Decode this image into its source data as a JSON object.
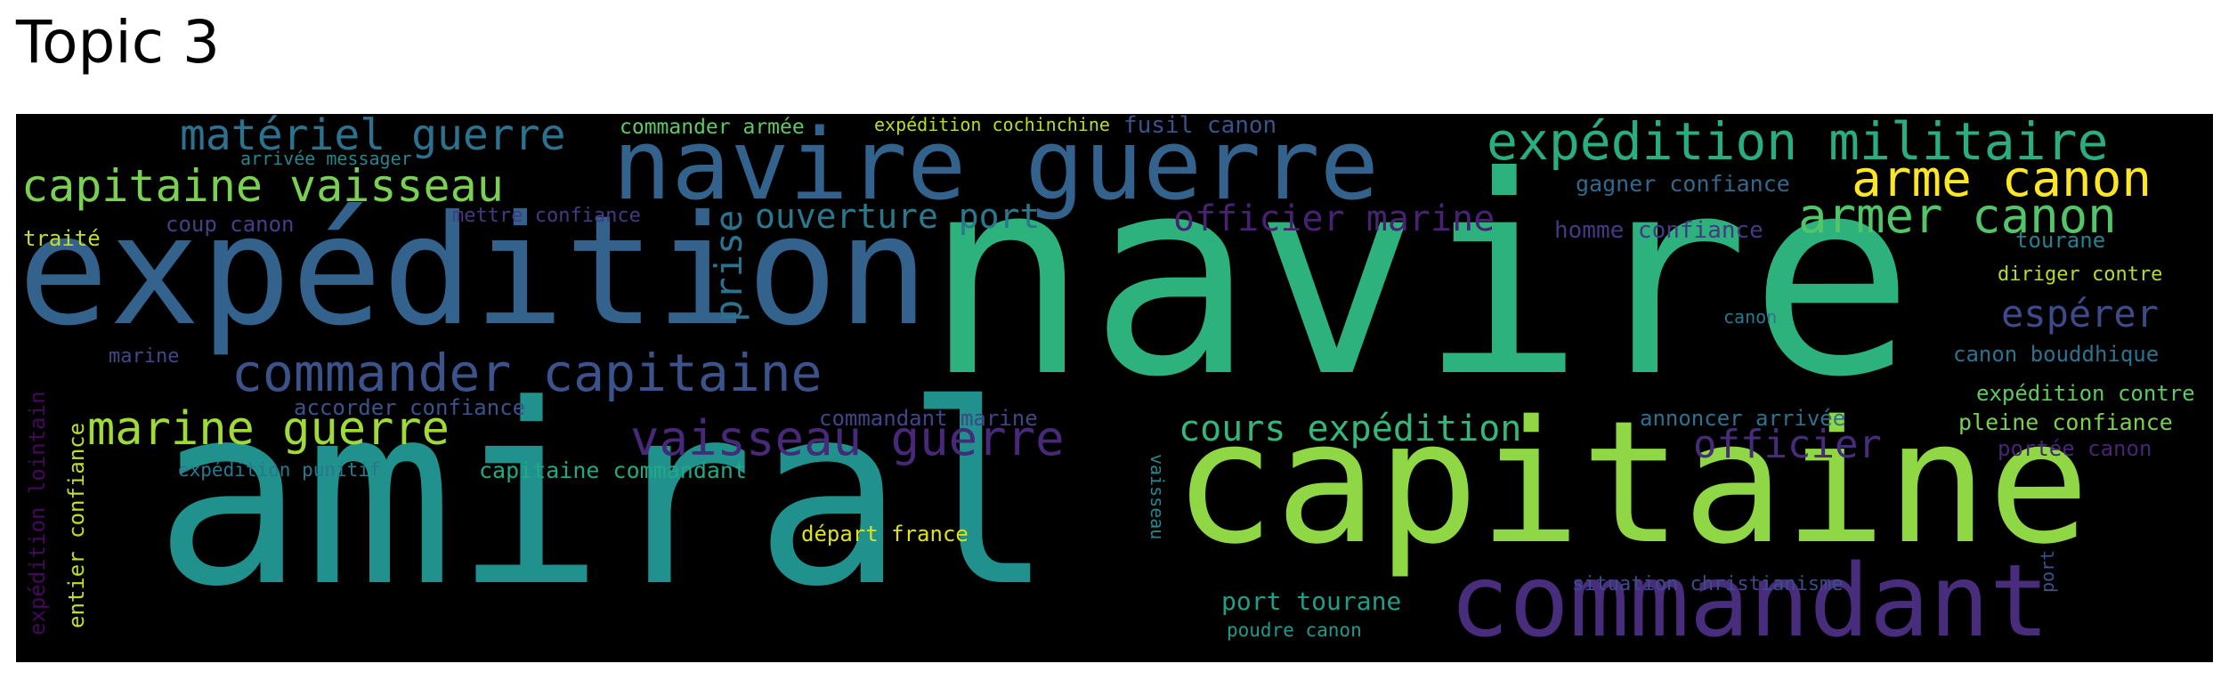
{
  "title": "Topic 3",
  "words": {
    "navire": {
      "text": "navire",
      "color": "#2db27d"
    },
    "amiral": {
      "text": "amiral",
      "color": "#20918c"
    },
    "capitaine": {
      "text": "capitaine",
      "color": "#8fd744"
    },
    "expedition": {
      "text": "expédition",
      "color": "#33638d"
    },
    "navire_guerre": {
      "text": "navire guerre",
      "color": "#33638d"
    },
    "commandant": {
      "text": "commandant",
      "color": "#472d7b"
    },
    "expedition_militaire": {
      "text": "expédition militaire",
      "color": "#29af7f"
    },
    "arme_canon": {
      "text": "arme canon",
      "color": "#fde725"
    },
    "armer_canon": {
      "text": "armer canon",
      "color": "#52c569"
    },
    "commander_capitaine": {
      "text": "commander capitaine",
      "color": "#3b528b"
    },
    "capitaine_vaisseau": {
      "text": "capitaine vaisseau",
      "color": "#7ad151"
    },
    "materiel_guerre": {
      "text": "matériel guerre",
      "color": "#2c728e"
    },
    "marine_guerre": {
      "text": "marine guerre",
      "color": "#a0da39"
    },
    "vaisseau_guerre": {
      "text": "vaisseau guerre",
      "color": "#482878"
    },
    "cours_expedition": {
      "text": "cours expédition",
      "color": "#35b779"
    },
    "officier": {
      "text": "officier",
      "color": "#472c7a"
    },
    "officier_marine": {
      "text": "officier marine",
      "color": "#482173"
    },
    "ouverture_port": {
      "text": "ouverture port",
      "color": "#2a788e"
    },
    "prise": {
      "text": "prise",
      "color": "#2c728e"
    },
    "esperer": {
      "text": "espérer",
      "color": "#3e4a89"
    },
    "gagner_confiance": {
      "text": "gagner confiance",
      "color": "#31688e"
    },
    "homme_confiance": {
      "text": "homme confiance",
      "color": "#443983"
    },
    "commander_armee": {
      "text": "commander armée",
      "color": "#5ec962"
    },
    "expedition_cochinchine": {
      "text": "expédition cochinchine",
      "color": "#b5de2b"
    },
    "fusil_canon": {
      "text": "fusil canon",
      "color": "#3b528b"
    },
    "arrivee_messager": {
      "text": "arrivée messager",
      "color": "#24868e"
    },
    "coup_canon": {
      "text": "coup canon",
      "color": "#424086"
    },
    "mettre_confiance": {
      "text": "mettre confiance",
      "color": "#443a83"
    },
    "traite": {
      "text": "traité",
      "color": "#c2df23"
    },
    "tourane": {
      "text": "tourane",
      "color": "#26818e"
    },
    "diriger_contre": {
      "text": "diriger contre",
      "color": "#b2dd2d"
    },
    "canon": {
      "text": "canon",
      "color": "#2a788e"
    },
    "canon_bouddhique": {
      "text": "canon bouddhique",
      "color": "#2c728e"
    },
    "marine": {
      "text": "marine",
      "color": "#3e4989"
    },
    "accorder_confiance": {
      "text": "accorder confiance",
      "color": "#3b528b"
    },
    "commandant_marine": {
      "text": "commandant marine",
      "color": "#414487"
    },
    "annoncer_arrivee": {
      "text": "annoncer arrivée",
      "color": "#2c728e"
    },
    "expedition_contre": {
      "text": "expédition contre",
      "color": "#5ec962"
    },
    "pleine_confiance": {
      "text": "pleine confiance",
      "color": "#7ad151"
    },
    "portee_canon": {
      "text": "portée canon",
      "color": "#482475"
    },
    "expedition_punitif": {
      "text": "expédition punitif",
      "color": "#2a788e"
    },
    "capitaine_commandant": {
      "text": "capitaine commandant",
      "color": "#22a884"
    },
    "depart_france": {
      "text": "départ france",
      "color": "#dde318"
    },
    "vaisseau": {
      "text": "vaisseau",
      "color": "#24868e"
    },
    "port": {
      "text": "port",
      "color": "#3b528b"
    },
    "situation_christianisme": {
      "text": "situation christianisme",
      "color": "#3e4a89"
    },
    "port_tourane": {
      "text": "port tourane",
      "color": "#1f9e89"
    },
    "poudre_canon": {
      "text": "poudre canon",
      "color": "#1f9a8a"
    },
    "expedition_lointain": {
      "text": "expédition lointain",
      "color": "#46085c"
    },
    "entier_confiance": {
      "text": "entier confiance",
      "color": "#bddf26"
    }
  }
}
